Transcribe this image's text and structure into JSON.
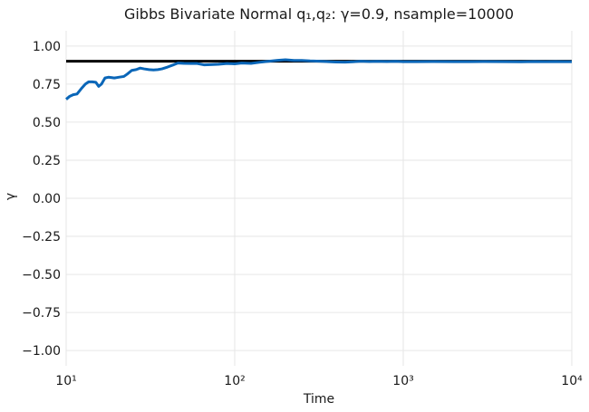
{
  "chart_data": {
    "type": "line",
    "title": "Gibbs Bivariate Normal q₁,q₂: γ=0.9, nsample=10000",
    "xlabel": "Time",
    "ylabel": "γ",
    "x_scale": "log",
    "xlim": [
      10,
      10000
    ],
    "ylim": [
      -1.1,
      1.1
    ],
    "grid": true,
    "x_ticks": [
      {
        "value": 10,
        "label": "10¹"
      },
      {
        "value": 100,
        "label": "10²"
      },
      {
        "value": 1000,
        "label": "10³"
      },
      {
        "value": 10000,
        "label": "10⁴"
      }
    ],
    "y_ticks": [
      {
        "value": 1.0,
        "label": "1.00"
      },
      {
        "value": 0.75,
        "label": "0.75"
      },
      {
        "value": 0.5,
        "label": "0.50"
      },
      {
        "value": 0.25,
        "label": "0.25"
      },
      {
        "value": 0.0,
        "label": "0.00"
      },
      {
        "value": -0.25,
        "label": "−0.25"
      },
      {
        "value": -0.5,
        "label": "−0.50"
      },
      {
        "value": -0.75,
        "label": "−0.75"
      },
      {
        "value": -1.0,
        "label": "−1.00"
      }
    ],
    "series": [
      {
        "color": "#0a66b8",
        "x": [
          10,
          10.5,
          11,
          11.6,
          12.3,
          13,
          13.6,
          14.3,
          15,
          15.6,
          16.2,
          17,
          17.8,
          18.5,
          19.3,
          20.5,
          22,
          23,
          24.5,
          26,
          27.5,
          29,
          31,
          33,
          35,
          37,
          40,
          43,
          46,
          50,
          55,
          60,
          66,
          72,
          80,
          90,
          100,
          110,
          125,
          140,
          160,
          180,
          200,
          225,
          250,
          280,
          320,
          360,
          400,
          450,
          500,
          560,
          630,
          700,
          800,
          900,
          1000,
          1200,
          1500,
          2000,
          2500,
          3000,
          4000,
          5000,
          6000,
          7000,
          8000,
          9000,
          10000
        ],
        "y": [
          0.65,
          0.67,
          0.68,
          0.685,
          0.72,
          0.75,
          0.765,
          0.765,
          0.762,
          0.735,
          0.75,
          0.79,
          0.795,
          0.793,
          0.79,
          0.795,
          0.8,
          0.815,
          0.84,
          0.845,
          0.855,
          0.85,
          0.845,
          0.843,
          0.845,
          0.85,
          0.862,
          0.875,
          0.888,
          0.886,
          0.885,
          0.885,
          0.876,
          0.878,
          0.88,
          0.885,
          0.883,
          0.888,
          0.886,
          0.893,
          0.9,
          0.906,
          0.91,
          0.905,
          0.905,
          0.902,
          0.9,
          0.897,
          0.895,
          0.894,
          0.896,
          0.9,
          0.898,
          0.899,
          0.898,
          0.899,
          0.897,
          0.897,
          0.898,
          0.897,
          0.897,
          0.898,
          0.897,
          0.896,
          0.898,
          0.897,
          0.898,
          0.897,
          0.897
        ]
      },
      {
        "color": "#000000",
        "x": [
          10,
          10000
        ],
        "y": [
          0.9,
          0.9
        ]
      }
    ]
  }
}
